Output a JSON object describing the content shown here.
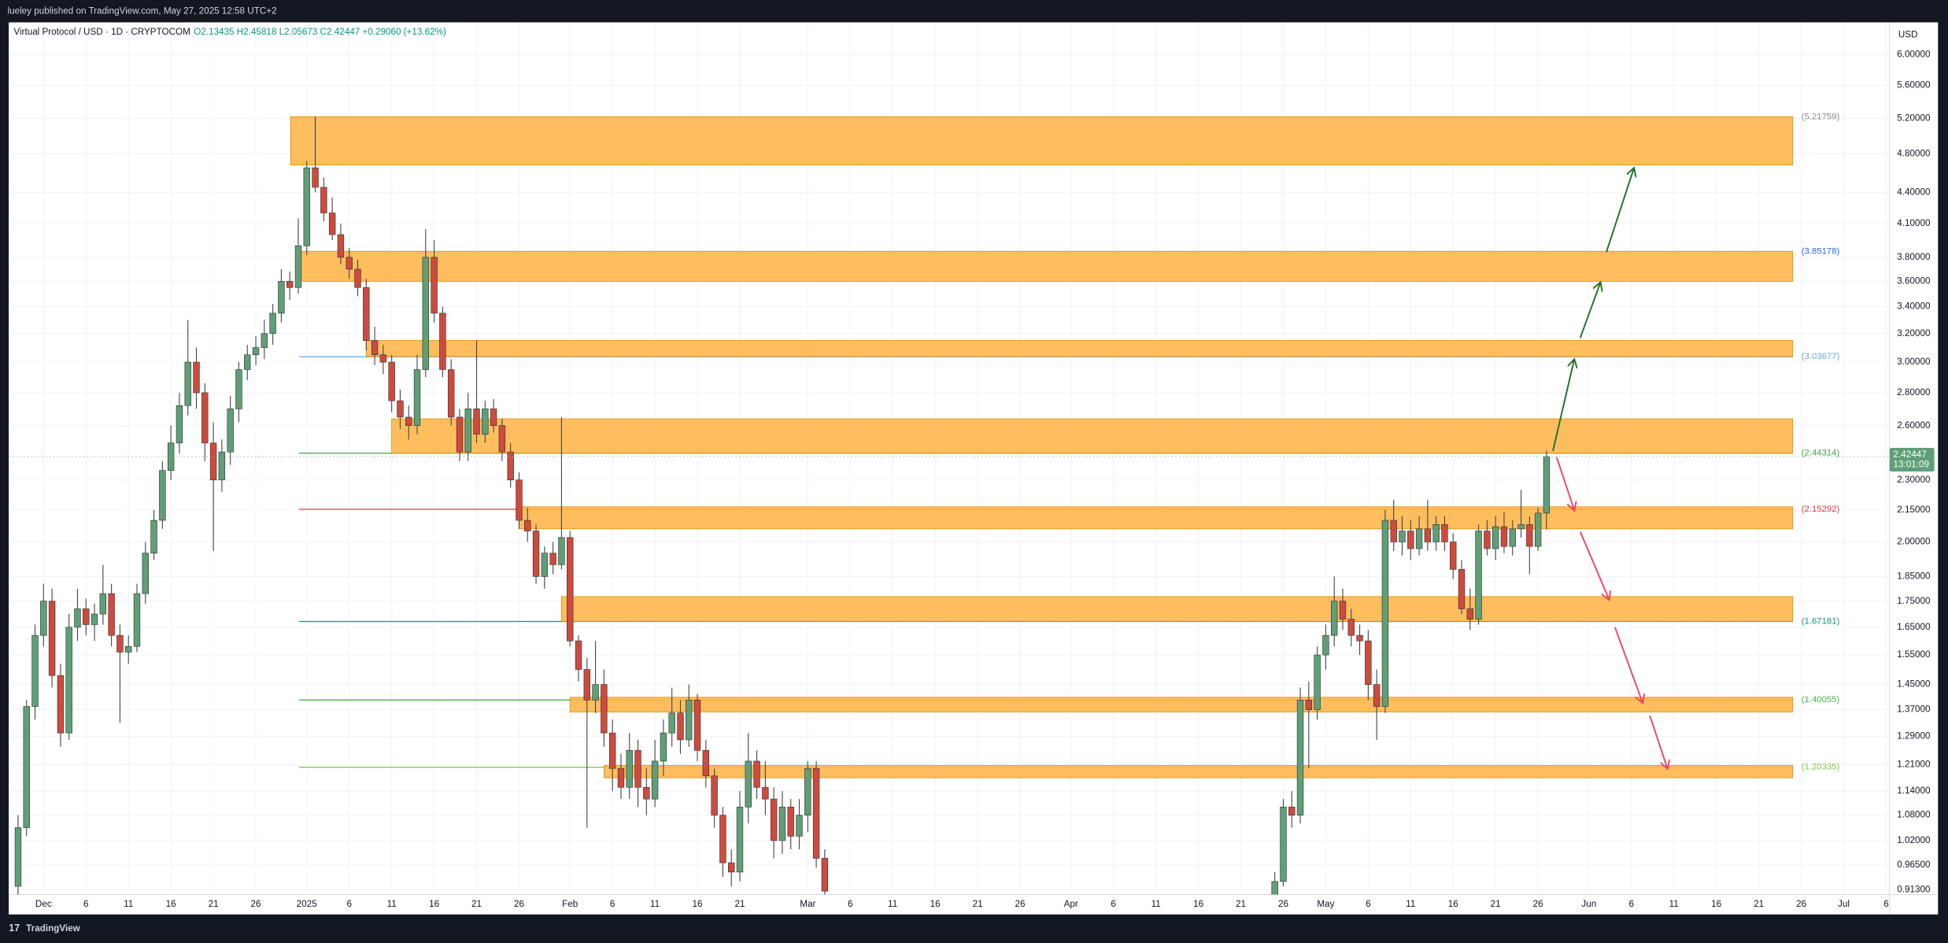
{
  "header": "lueley published on TradingView.com, May 27, 2025 12:58 UTC+2",
  "footer": "TradingView",
  "chart_data": {
    "type": "candlestick",
    "symbol": "Virtual Protocol / USD · 1D · CRYPTOCOM",
    "legend_values": "O2.13435  H2.45818  L2.05673  C2.42447  +0.29060 (+13.62%)",
    "y_unit": "USD",
    "countdown": "13:01:09",
    "log_scale": true,
    "grid": true,
    "up_color": "#5f9f77",
    "down_color": "#cf4a3e",
    "xlim": [
      -4.1,
      217.4
    ],
    "ylim": [
      0.903,
      6.455
    ],
    "xticks": [
      {
        "value": 0,
        "label": "Dec"
      },
      {
        "value": 5,
        "label": "6"
      },
      {
        "value": 10,
        "label": "11"
      },
      {
        "value": 15,
        "label": "16"
      },
      {
        "value": 20,
        "label": "21"
      },
      {
        "value": 25,
        "label": "26"
      },
      {
        "value": 31,
        "label": "2025"
      },
      {
        "value": 36,
        "label": "6"
      },
      {
        "value": 41,
        "label": "11"
      },
      {
        "value": 46,
        "label": "16"
      },
      {
        "value": 51,
        "label": "21"
      },
      {
        "value": 56,
        "label": "26"
      },
      {
        "value": 62,
        "label": "Feb"
      },
      {
        "value": 67,
        "label": "6"
      },
      {
        "value": 72,
        "label": "11"
      },
      {
        "value": 77,
        "label": "16"
      },
      {
        "value": 82,
        "label": "21"
      },
      {
        "value": 90,
        "label": "Mar"
      },
      {
        "value": 95,
        "label": "6"
      },
      {
        "value": 100,
        "label": "11"
      },
      {
        "value": 105,
        "label": "16"
      },
      {
        "value": 110,
        "label": "21"
      },
      {
        "value": 115,
        "label": "26"
      },
      {
        "value": 121,
        "label": "Apr"
      },
      {
        "value": 126,
        "label": "6"
      },
      {
        "value": 131,
        "label": "11"
      },
      {
        "value": 136,
        "label": "16"
      },
      {
        "value": 141,
        "label": "21"
      },
      {
        "value": 146,
        "label": "26"
      },
      {
        "value": 151,
        "label": "May"
      },
      {
        "value": 156,
        "label": "6"
      },
      {
        "value": 161,
        "label": "11"
      },
      {
        "value": 166,
        "label": "16"
      },
      {
        "value": 171,
        "label": "21"
      },
      {
        "value": 176,
        "label": "26"
      },
      {
        "value": 182,
        "label": "Jun"
      },
      {
        "value": 187,
        "label": "6"
      },
      {
        "value": 192,
        "label": "11"
      },
      {
        "value": 197,
        "label": "16"
      },
      {
        "value": 202,
        "label": "21"
      },
      {
        "value": 207,
        "label": "26"
      },
      {
        "value": 212,
        "label": "Jul"
      },
      {
        "value": 217,
        "label": "6"
      }
    ],
    "yticks": [
      {
        "value": 6,
        "label": "6.00000"
      },
      {
        "value": 5.6,
        "label": "5.60000"
      },
      {
        "value": 5.2,
        "label": "5.20000"
      },
      {
        "value": 4.8,
        "label": "4.80000"
      },
      {
        "value": 4.4,
        "label": "4.40000"
      },
      {
        "value": 4.1,
        "label": "4.10000"
      },
      {
        "value": 3.8,
        "label": "3.80000"
      },
      {
        "value": 3.6,
        "label": "3.60000"
      },
      {
        "value": 3.4,
        "label": "3.40000"
      },
      {
        "value": 3.2,
        "label": "3.20000"
      },
      {
        "value": 3,
        "label": "3.00000"
      },
      {
        "value": 2.8,
        "label": "2.80000"
      },
      {
        "value": 2.6,
        "label": "2.60000"
      },
      {
        "value": 2.3,
        "label": "2.30000"
      },
      {
        "value": 2.15,
        "label": "2.15000"
      },
      {
        "value": 2,
        "label": "2.00000"
      },
      {
        "value": 1.85,
        "label": "1.85000"
      },
      {
        "value": 1.75,
        "label": "1.75000"
      },
      {
        "value": 1.65,
        "label": "1.65000"
      },
      {
        "value": 1.55,
        "label": "1.55000"
      },
      {
        "value": 1.45,
        "label": "1.45000"
      },
      {
        "value": 1.37,
        "label": "1.37000"
      },
      {
        "value": 1.29,
        "label": "1.29000"
      },
      {
        "value": 1.21,
        "label": "1.21000"
      },
      {
        "value": 1.14,
        "label": "1.14000"
      },
      {
        "value": 1.08,
        "label": "1.08000"
      },
      {
        "value": 1.02,
        "label": "1.02000"
      },
      {
        "value": 0.965,
        "label": "0.96500"
      },
      {
        "value": 0.913,
        "label": "0.91300"
      }
    ],
    "x": [
      -3,
      -2,
      -1,
      0,
      1,
      2,
      3,
      4,
      5,
      6,
      7,
      8,
      9,
      10,
      11,
      12,
      13,
      14,
      15,
      16,
      17,
      18,
      19,
      20,
      21,
      22,
      23,
      24,
      25,
      26,
      27,
      28,
      29,
      30,
      31,
      32,
      33,
      34,
      35,
      36,
      37,
      38,
      39,
      40,
      41,
      42,
      43,
      44,
      45,
      46,
      47,
      48,
      49,
      50,
      51,
      52,
      53,
      54,
      55,
      56,
      57,
      58,
      59,
      60,
      61,
      62,
      63,
      64,
      65,
      66,
      67,
      68,
      69,
      70,
      71,
      72,
      73,
      74,
      75,
      76,
      77,
      78,
      79,
      80,
      81,
      82,
      83,
      84,
      85,
      86,
      87,
      88,
      89,
      90,
      91,
      92,
      145,
      146,
      147,
      148,
      149,
      150,
      151,
      152,
      153,
      154,
      155,
      156,
      157,
      158,
      159,
      160,
      161,
      162,
      163,
      164,
      165,
      166,
      167,
      168,
      169,
      170,
      171,
      172,
      173,
      174,
      175,
      176,
      177
    ],
    "ohlc": [
      [
        0.92,
        1.08,
        0.89,
        1.05
      ],
      [
        1.05,
        1.4,
        1.03,
        1.38
      ],
      [
        1.38,
        1.66,
        1.34,
        1.62
      ],
      [
        1.62,
        1.82,
        1.58,
        1.75
      ],
      [
        1.75,
        1.8,
        1.44,
        1.48
      ],
      [
        1.48,
        1.52,
        1.26,
        1.3
      ],
      [
        1.3,
        1.7,
        1.28,
        1.65
      ],
      [
        1.65,
        1.8,
        1.6,
        1.72
      ],
      [
        1.72,
        1.76,
        1.62,
        1.66
      ],
      [
        1.66,
        1.74,
        1.6,
        1.7
      ],
      [
        1.7,
        1.9,
        1.66,
        1.78
      ],
      [
        1.78,
        1.82,
        1.58,
        1.62
      ],
      [
        1.62,
        1.66,
        1.33,
        1.56
      ],
      [
        1.56,
        1.62,
        1.52,
        1.58
      ],
      [
        1.58,
        1.82,
        1.56,
        1.78
      ],
      [
        1.78,
        2.0,
        1.74,
        1.95
      ],
      [
        1.95,
        2.15,
        1.92,
        2.1
      ],
      [
        2.1,
        2.4,
        2.06,
        2.35
      ],
      [
        2.35,
        2.6,
        2.3,
        2.5
      ],
      [
        2.5,
        2.8,
        2.44,
        2.72
      ],
      [
        2.72,
        3.3,
        2.66,
        3.0
      ],
      [
        3.0,
        3.1,
        2.7,
        2.8
      ],
      [
        2.8,
        2.86,
        2.4,
        2.5
      ],
      [
        2.5,
        2.62,
        1.96,
        2.3
      ],
      [
        2.3,
        2.52,
        2.24,
        2.45
      ],
      [
        2.45,
        2.78,
        2.38,
        2.7
      ],
      [
        2.7,
        3.0,
        2.62,
        2.95
      ],
      [
        2.95,
        3.12,
        2.88,
        3.05
      ],
      [
        3.05,
        3.18,
        2.98,
        3.1
      ],
      [
        3.1,
        3.3,
        3.02,
        3.2
      ],
      [
        3.2,
        3.42,
        3.12,
        3.35
      ],
      [
        3.35,
        3.7,
        3.28,
        3.6
      ],
      [
        3.6,
        3.68,
        3.45,
        3.55
      ],
      [
        3.55,
        4.15,
        3.5,
        3.9
      ],
      [
        3.9,
        4.72,
        3.82,
        4.65
      ],
      [
        4.65,
        5.22,
        4.4,
        4.45
      ],
      [
        4.45,
        4.55,
        4.12,
        4.2
      ],
      [
        4.2,
        4.35,
        3.95,
        4.0
      ],
      [
        4.0,
        4.1,
        3.74,
        3.8
      ],
      [
        3.8,
        3.88,
        3.62,
        3.7
      ],
      [
        3.7,
        3.78,
        3.48,
        3.55
      ],
      [
        3.55,
        3.62,
        3.08,
        3.15
      ],
      [
        3.15,
        3.25,
        2.98,
        3.05
      ],
      [
        3.05,
        3.12,
        2.92,
        3.0
      ],
      [
        3.0,
        3.05,
        2.68,
        2.75
      ],
      [
        2.75,
        2.82,
        2.58,
        2.65
      ],
      [
        2.65,
        2.72,
        2.52,
        2.6
      ],
      [
        2.6,
        3.05,
        2.55,
        2.95
      ],
      [
        2.95,
        4.05,
        2.9,
        3.8
      ],
      [
        3.8,
        3.95,
        3.28,
        3.35
      ],
      [
        3.35,
        3.4,
        2.9,
        2.95
      ],
      [
        2.95,
        3.02,
        2.6,
        2.65
      ],
      [
        2.65,
        2.7,
        2.4,
        2.45
      ],
      [
        2.45,
        2.8,
        2.4,
        2.7
      ],
      [
        2.7,
        3.15,
        2.5,
        2.55
      ],
      [
        2.55,
        2.75,
        2.5,
        2.7
      ],
      [
        2.7,
        2.76,
        2.56,
        2.6
      ],
      [
        2.6,
        2.64,
        2.4,
        2.45
      ],
      [
        2.45,
        2.5,
        2.26,
        2.3
      ],
      [
        2.3,
        2.34,
        2.06,
        2.1
      ],
      [
        2.1,
        2.16,
        2.0,
        2.05
      ],
      [
        2.05,
        2.08,
        1.82,
        1.85
      ],
      [
        1.85,
        1.98,
        1.8,
        1.95
      ],
      [
        1.95,
        2.0,
        1.86,
        1.9
      ],
      [
        1.9,
        2.65,
        1.88,
        2.02
      ],
      [
        2.02,
        2.05,
        1.58,
        1.6
      ],
      [
        1.6,
        1.62,
        1.46,
        1.5
      ],
      [
        1.5,
        1.54,
        1.05,
        1.4
      ],
      [
        1.4,
        1.6,
        1.36,
        1.45
      ],
      [
        1.45,
        1.5,
        1.26,
        1.3
      ],
      [
        1.3,
        1.34,
        1.14,
        1.2
      ],
      [
        1.2,
        1.24,
        1.12,
        1.15
      ],
      [
        1.15,
        1.3,
        1.12,
        1.25
      ],
      [
        1.25,
        1.28,
        1.1,
        1.15
      ],
      [
        1.15,
        1.2,
        1.08,
        1.12
      ],
      [
        1.12,
        1.28,
        1.1,
        1.22
      ],
      [
        1.22,
        1.34,
        1.18,
        1.3
      ],
      [
        1.3,
        1.44,
        1.26,
        1.36
      ],
      [
        1.36,
        1.4,
        1.24,
        1.28
      ],
      [
        1.28,
        1.45,
        1.26,
        1.4
      ],
      [
        1.4,
        1.42,
        1.22,
        1.25
      ],
      [
        1.25,
        1.28,
        1.15,
        1.18
      ],
      [
        1.18,
        1.2,
        1.05,
        1.08
      ],
      [
        1.08,
        1.1,
        0.94,
        0.97
      ],
      [
        0.97,
        1.0,
        0.92,
        0.95
      ],
      [
        0.95,
        1.14,
        0.93,
        1.1
      ],
      [
        1.1,
        1.3,
        1.06,
        1.22
      ],
      [
        1.22,
        1.25,
        1.12,
        1.15
      ],
      [
        1.15,
        1.22,
        1.08,
        1.12
      ],
      [
        1.12,
        1.15,
        0.98,
        1.02
      ],
      [
        1.02,
        1.14,
        0.99,
        1.1
      ],
      [
        1.1,
        1.12,
        1.0,
        1.03
      ],
      [
        1.03,
        1.12,
        1.0,
        1.08
      ],
      [
        1.08,
        1.22,
        1.04,
        1.2
      ],
      [
        1.2,
        1.22,
        0.96,
        0.98
      ],
      [
        0.98,
        1.0,
        0.9,
        0.91
      ],
      [
        0.88,
        0.95,
        0.86,
        0.93
      ],
      [
        0.93,
        1.12,
        0.92,
        1.1
      ],
      [
        1.1,
        1.14,
        1.05,
        1.08
      ],
      [
        1.08,
        1.44,
        1.06,
        1.4
      ],
      [
        1.4,
        1.46,
        1.2,
        1.37
      ],
      [
        1.37,
        1.58,
        1.34,
        1.55
      ],
      [
        1.55,
        1.66,
        1.5,
        1.62
      ],
      [
        1.62,
        1.85,
        1.58,
        1.75
      ],
      [
        1.75,
        1.8,
        1.64,
        1.68
      ],
      [
        1.68,
        1.72,
        1.58,
        1.62
      ],
      [
        1.62,
        1.66,
        1.55,
        1.6
      ],
      [
        1.6,
        1.64,
        1.4,
        1.45
      ],
      [
        1.45,
        1.5,
        1.28,
        1.38
      ],
      [
        1.38,
        2.15,
        1.36,
        2.1
      ],
      [
        2.1,
        2.2,
        1.96,
        2.0
      ],
      [
        2.0,
        2.12,
        1.94,
        2.05
      ],
      [
        2.05,
        2.1,
        1.92,
        1.97
      ],
      [
        1.97,
        2.12,
        1.94,
        2.06
      ],
      [
        2.06,
        2.2,
        1.96,
        2.0
      ],
      [
        2.0,
        2.12,
        1.96,
        2.08
      ],
      [
        2.08,
        2.12,
        1.96,
        2.0
      ],
      [
        2.0,
        2.04,
        1.84,
        1.88
      ],
      [
        1.88,
        1.92,
        1.7,
        1.72
      ],
      [
        1.72,
        1.8,
        1.64,
        1.68
      ],
      [
        1.68,
        2.08,
        1.66,
        2.05
      ],
      [
        2.05,
        2.1,
        1.94,
        1.97
      ],
      [
        1.97,
        2.12,
        1.92,
        2.07
      ],
      [
        2.07,
        2.14,
        1.95,
        1.98
      ],
      [
        1.98,
        2.1,
        1.94,
        2.06
      ],
      [
        2.06,
        2.25,
        2.02,
        2.08
      ],
      [
        2.08,
        2.12,
        1.86,
        1.98
      ],
      [
        1.98,
        2.16,
        1.96,
        2.13435
      ],
      [
        2.13435,
        2.45818,
        2.05673,
        2.42447
      ]
    ],
    "zones": [
      {
        "x0": 29.1,
        "x1": 206,
        "top": 5.2176,
        "bottom": 4.68
      },
      {
        "x0": 30.1,
        "x1": 206,
        "top": 3.852,
        "bottom": 3.6
      },
      {
        "x0": 38,
        "x1": 206,
        "top": 3.15,
        "bottom": 3.037
      },
      {
        "x0": 41,
        "x1": 206,
        "top": 2.64,
        "bottom": 2.443
      },
      {
        "x0": 56,
        "x1": 206,
        "top": 2.165,
        "bottom": 2.06
      },
      {
        "x0": 61,
        "x1": 206,
        "top": 1.768,
        "bottom": 1.672
      },
      {
        "x0": 62,
        "x1": 206,
        "top": 1.409,
        "bottom": 1.363
      },
      {
        "x0": 66,
        "x1": 206,
        "top": 1.208,
        "bottom": 1.175
      }
    ],
    "levels": [
      {
        "value": 5.21759,
        "label": "(5.21759)",
        "color": "#888888"
      },
      {
        "value": 3.85178,
        "label": "(3.85178)",
        "color": "#2962ff"
      },
      {
        "value": 3.03677,
        "label": "(3.03677)",
        "color": "#64a7e8",
        "line_from": 30.1
      },
      {
        "value": 2.44314,
        "label": "(2.44314)",
        "color": "#43a047",
        "line_from": 30.1
      },
      {
        "value": 2.15292,
        "label": "(2.15292)",
        "color": "#f23645",
        "line_from": 30.1
      },
      {
        "value": 1.67181,
        "label": "(1.67181)",
        "color": "#089981",
        "line_from": 30.1
      },
      {
        "value": 1.40055,
        "label": "(1.40055)",
        "color": "#4caf50",
        "line_from": 30.1
      },
      {
        "value": 1.20335,
        "label": "(1.20335)",
        "color": "#8bc34a",
        "line_from": 30.1
      }
    ],
    "zone_color": "#ffb74d"
  }
}
